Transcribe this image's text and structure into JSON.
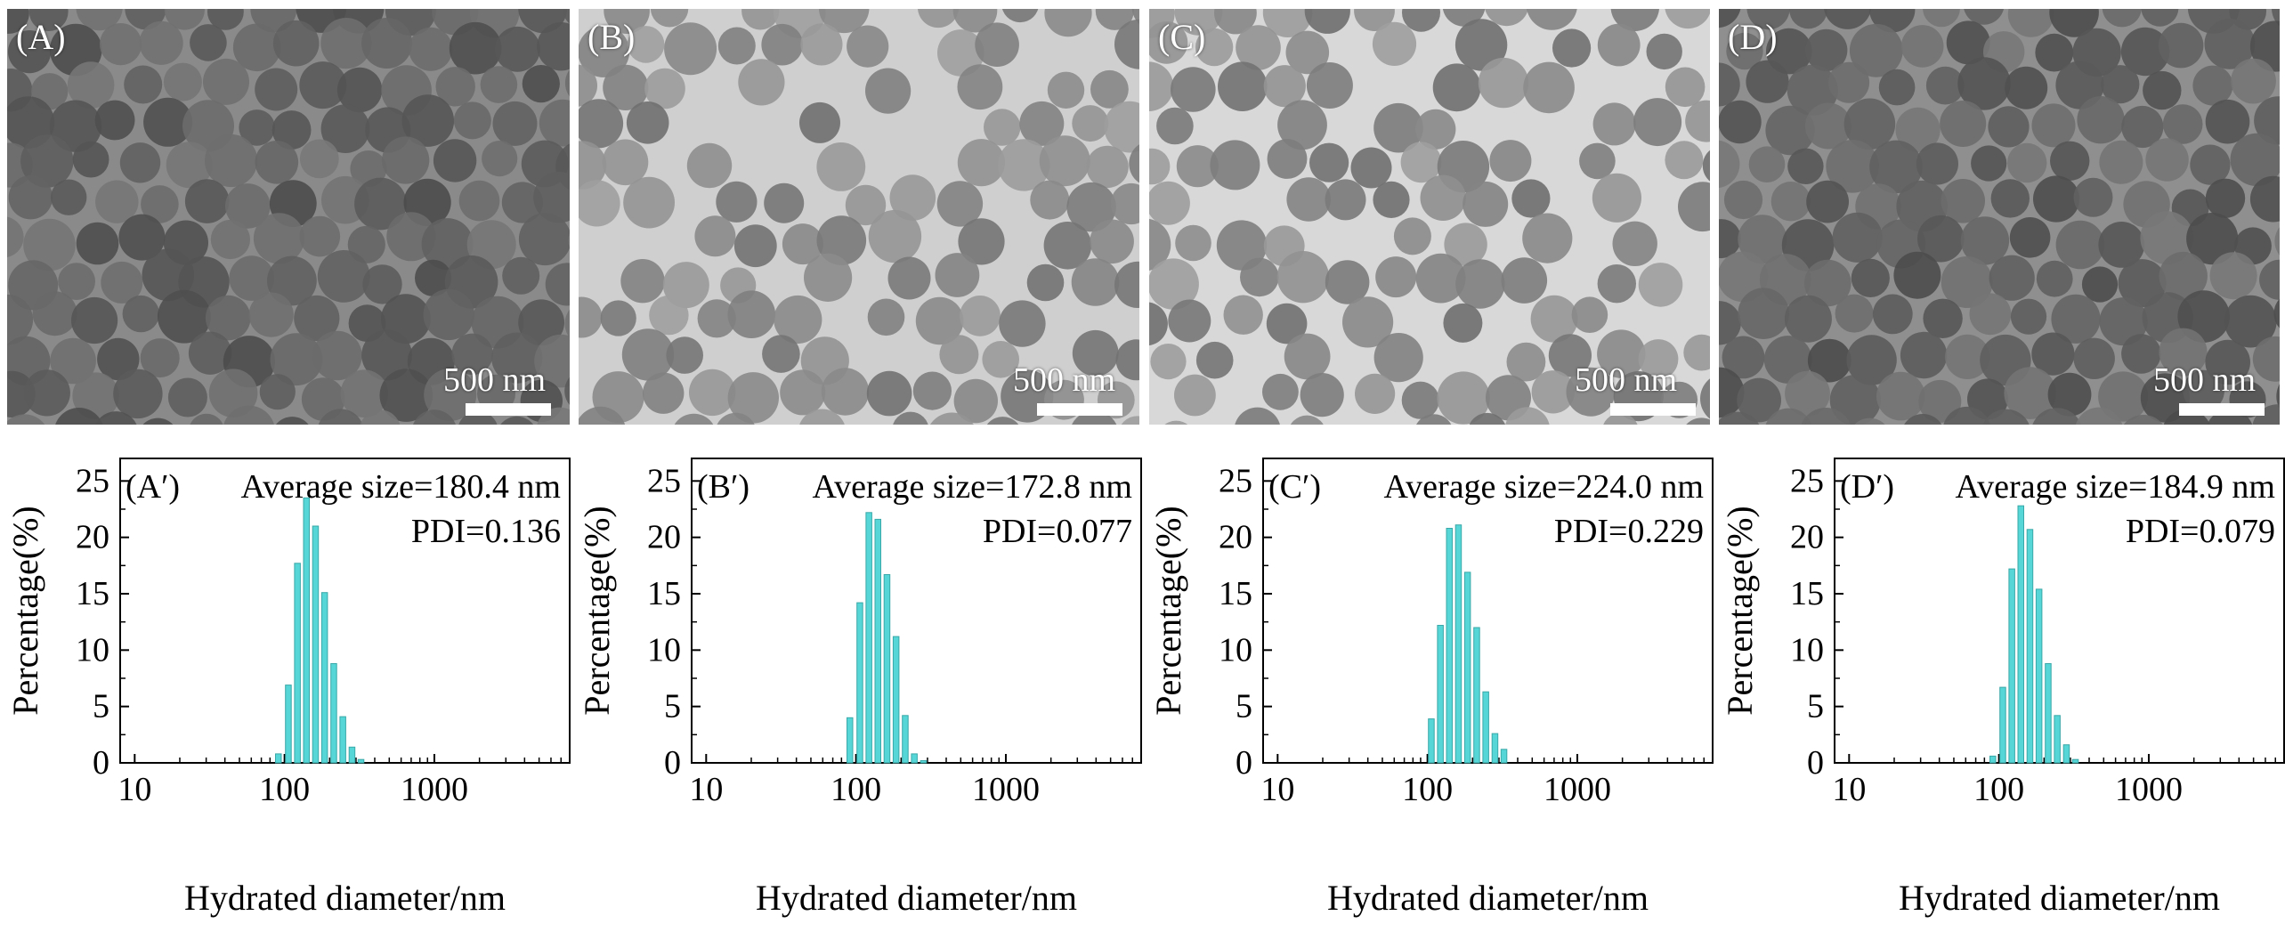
{
  "colors": {
    "bar_fill": "#56d6d6",
    "bar_stroke": "#3aa8a8",
    "scale_bar": "#ffffff"
  },
  "tem_panels": [
    {
      "label": "(A)",
      "scale": "500 nm",
      "style": "dense"
    },
    {
      "label": "(B)",
      "scale": "500 nm",
      "style": "light"
    },
    {
      "label": "(C)",
      "scale": "500 nm",
      "style": "light2"
    },
    {
      "label": "(D)",
      "scale": "500 nm",
      "style": "dense2"
    }
  ],
  "chart_data": [
    {
      "type": "bar",
      "panel_label": "(A′)",
      "average_size": "Average size=180.4 nm",
      "pdi": "PDI=0.136",
      "xlabel": "Hydrated diameter/nm",
      "ylabel": "Percentage(%)",
      "xscale": "log",
      "xlim": [
        8,
        8000
      ],
      "ylim": [
        0,
        27
      ],
      "x_ticks": [
        "10",
        "100",
        "1000"
      ],
      "y_ticks": [
        "0",
        "5",
        "10",
        "15",
        "20",
        "25"
      ],
      "x": [
        91,
        106,
        122,
        140,
        161,
        185,
        213,
        245,
        282,
        324
      ],
      "values": [
        0.8,
        6.9,
        17.7,
        23.5,
        21.0,
        15.1,
        8.8,
        4.1,
        1.4,
        0.3
      ]
    },
    {
      "type": "bar",
      "panel_label": "(B′)",
      "average_size": "Average size=172.8 nm",
      "pdi": "PDI=0.077",
      "xlabel": "Hydrated diameter/nm",
      "ylabel": "Percentage(%)",
      "xscale": "log",
      "xlim": [
        8,
        8000
      ],
      "ylim": [
        0,
        27
      ],
      "x_ticks": [
        "10",
        "100",
        "1000"
      ],
      "y_ticks": [
        "0",
        "5",
        "10",
        "15",
        "20",
        "25"
      ],
      "x": [
        91,
        106,
        122,
        140,
        161,
        185,
        213,
        245,
        282
      ],
      "values": [
        4.0,
        14.2,
        22.2,
        21.6,
        16.7,
        11.2,
        4.2,
        0.8,
        0.2
      ]
    },
    {
      "type": "bar",
      "panel_label": "(C′)",
      "average_size": "Average size=224.0 nm",
      "pdi": "PDI=0.229",
      "xlabel": "Hydrated diameter/nm",
      "ylabel": "Percentage(%)",
      "xscale": "log",
      "xlim": [
        8,
        8000
      ],
      "ylim": [
        0,
        27
      ],
      "x_ticks": [
        "10",
        "100",
        "1000"
      ],
      "y_ticks": [
        "0",
        "5",
        "10",
        "15",
        "20",
        "25"
      ],
      "x": [
        106,
        122,
        140,
        161,
        185,
        213,
        245,
        282,
        324
      ],
      "values": [
        3.9,
        12.2,
        20.8,
        21.1,
        16.9,
        12.0,
        6.3,
        2.6,
        1.2
      ]
    },
    {
      "type": "bar",
      "panel_label": "(D′)",
      "average_size": "Average size=184.9 nm",
      "pdi": "PDI=0.079",
      "xlabel": "Hydrated diameter/nm",
      "ylabel": "Percentage(%)",
      "xscale": "log",
      "xlim": [
        8,
        8000
      ],
      "ylim": [
        0,
        27
      ],
      "x_ticks": [
        "10",
        "100",
        "1000"
      ],
      "y_ticks": [
        "0",
        "5",
        "10",
        "15",
        "20",
        "25"
      ],
      "x": [
        91,
        106,
        122,
        140,
        161,
        185,
        213,
        245,
        282,
        324
      ],
      "values": [
        0.6,
        6.7,
        17.2,
        22.8,
        20.7,
        15.4,
        8.8,
        4.2,
        1.6,
        0.3
      ]
    }
  ]
}
